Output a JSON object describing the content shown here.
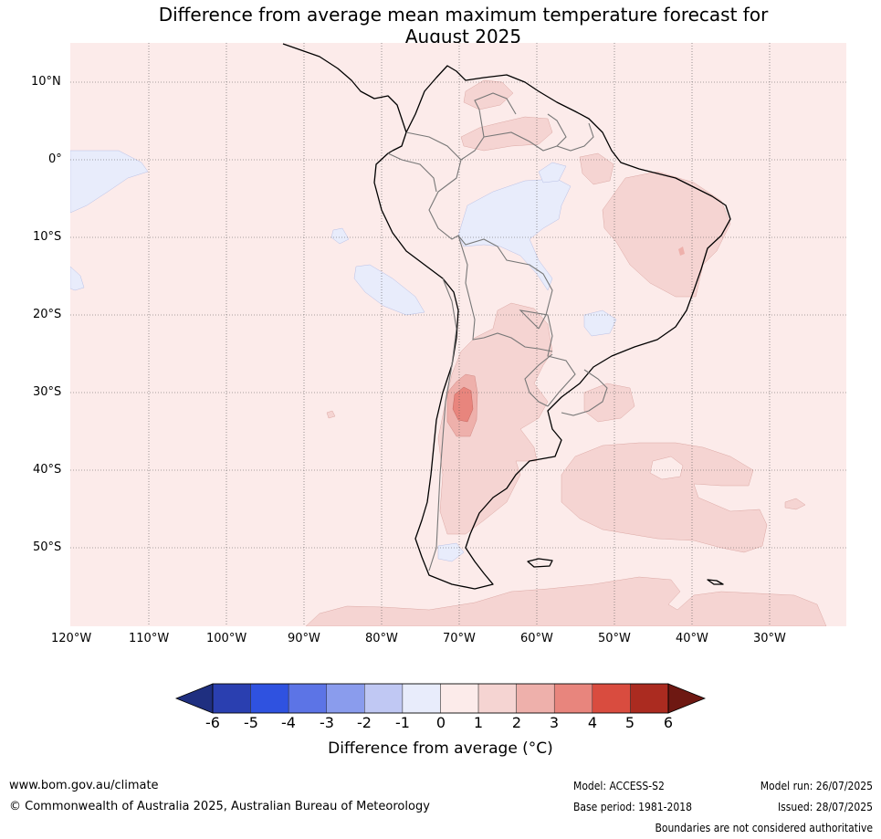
{
  "title": {
    "line1": "Difference from average mean maximum temperature forecast for",
    "line2": "August 2025"
  },
  "map": {
    "lat_labels": [
      "10°N",
      "0°",
      "10°S",
      "20°S",
      "30°S",
      "40°S",
      "50°S"
    ],
    "lon_labels": [
      "120°W",
      "110°W",
      "100°W",
      "90°W",
      "80°W",
      "70°W",
      "60°W",
      "50°W",
      "40°W",
      "30°W"
    ]
  },
  "colorbar": {
    "ticks": [
      "-6",
      "-5",
      "-4",
      "-3",
      "-2",
      "-1",
      "0",
      "1",
      "2",
      "3",
      "4",
      "5",
      "6"
    ],
    "colors": [
      "#1f2f80",
      "#2a3fb0",
      "#2f52e0",
      "#5c74e6",
      "#8a9ced",
      "#c0c8f3",
      "#e8ecfb",
      "#fcebea",
      "#f5d4d2",
      "#eeb0ab",
      "#e8857d",
      "#d94c3f",
      "#ab2b20",
      "#6e1812"
    ],
    "label": "Difference from average (°C)"
  },
  "footer": {
    "website": "www.bom.gov.au/climate",
    "copyright": "© Commonwealth of Australia 2025, Australian Bureau of Meteorology",
    "model": "Model: ACCESS-S2",
    "base_period": "Base period: 1981-2018",
    "model_run": "Model run: 26/07/2025",
    "issued": "Issued: 28/07/2025",
    "disclaimer": "Boundaries are not considered authoritative"
  }
}
